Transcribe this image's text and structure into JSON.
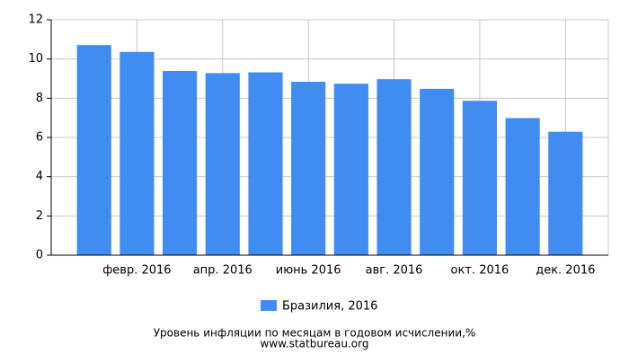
{
  "chart_data": {
    "type": "bar",
    "title": "Уровень инфляции по месяцам в годовом исчислении,%",
    "source": "www.statbureau.org",
    "categories": [
      null,
      "февр. 2016",
      null,
      "апр. 2016",
      null,
      "июнь 2016",
      null,
      "авг. 2016",
      null,
      "окт. 2016",
      null,
      "дек. 2016"
    ],
    "series": [
      {
        "name": "Бразилия, 2016",
        "color": "#418cf0",
        "values": [
          10.71,
          10.36,
          9.39,
          9.28,
          9.32,
          8.84,
          8.74,
          8.97,
          8.48,
          7.87,
          6.99,
          6.29
        ]
      }
    ],
    "ylim": [
      0,
      12
    ],
    "yticks": [
      0,
      2,
      4,
      6,
      8,
      10,
      12
    ],
    "grid": true
  }
}
